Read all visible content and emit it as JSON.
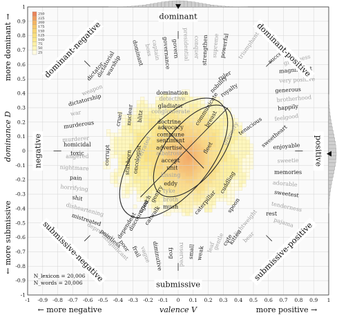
{
  "chart_data": {
    "type": "heatmap",
    "title": "",
    "xlabel": "valence V",
    "xlabel_left": "← more negative",
    "xlabel_right": "more positive →",
    "ylabel": "dominance D",
    "ylabel_top": "more dominant →",
    "ylabel_bottom": "← more submissive",
    "xlim": [
      -1,
      1
    ],
    "ylim": [
      -1,
      1
    ],
    "x_ticks": [
      "-1",
      "-0.9",
      "-0.8",
      "-0.7",
      "-0.6",
      "-0.5",
      "-0.4",
      "-0.3",
      "-0.2",
      "-0.1",
      "0",
      "0.1",
      "0.2",
      "0.3",
      "0.4",
      "0.5",
      "0.6",
      "0.7",
      "0.8",
      "0.9",
      "1"
    ],
    "y_ticks": [
      "-1",
      "-0.9",
      "-0.8",
      "-0.7",
      "-0.6",
      "-0.5",
      "-0.4",
      "-0.3",
      "-0.2",
      "-0.1",
      "0",
      "0.1",
      "0.2",
      "0.3",
      "0.4",
      "0.5",
      "0.6",
      "0.7",
      "0.8",
      "0.9",
      "1"
    ],
    "grid": true,
    "colorbar": {
      "placement": "top-left",
      "ticks": [
        "250",
        "225",
        "200",
        "175",
        "150",
        "125",
        "100",
        "75",
        "50",
        "25"
      ],
      "colors": [
        "#e8845a",
        "#ee9e5f",
        "#f3b463",
        "#f6c76a",
        "#f8d574",
        "#fae07f",
        "#fbe88e",
        "#fcf0a3",
        "#fdf6bd",
        "#fffbe0"
      ]
    },
    "direction_labels": [
      {
        "text": "dominant",
        "x": 0,
        "y": 0.93
      },
      {
        "text": "submissive",
        "x": 0,
        "y": -0.93
      },
      {
        "text": "negative",
        "x": -0.93,
        "y": 0
      },
      {
        "text": "positive",
        "x": 0.93,
        "y": 0
      },
      {
        "text": "dominant-negative",
        "x": -0.7,
        "y": 0.7
      },
      {
        "text": "dominant-positive",
        "x": 0.7,
        "y": 0.7
      },
      {
        "text": "submissive-negative",
        "x": -0.7,
        "y": -0.7
      },
      {
        "text": "submissive-positive",
        "x": 0.7,
        "y": -0.7
      }
    ],
    "words": [
      {
        "text": "warship",
        "x": -0.43,
        "y": 0.59,
        "rot": -60,
        "gray": false
      },
      {
        "text": "weapon",
        "x": -0.57,
        "y": 0.42,
        "rot": -22,
        "gray": true
      },
      {
        "text": "dictatorship",
        "x": -0.62,
        "y": 0.35,
        "rot": -15,
        "gray": false
      },
      {
        "text": "war",
        "x": -0.68,
        "y": 0.26,
        "rot": -10,
        "gray": true
      },
      {
        "text": "murderous",
        "x": -0.66,
        "y": 0.18,
        "rot": -8,
        "gray": false
      },
      {
        "text": "murderer",
        "x": -0.68,
        "y": 0.08,
        "rot": -4,
        "gray": true
      },
      {
        "text": "homicidal",
        "x": -0.67,
        "y": 0.04,
        "rot": 0,
        "gray": false
      },
      {
        "text": "angered",
        "x": -0.67,
        "y": -0.04,
        "rot": 0,
        "gray": true
      },
      {
        "text": "toxic",
        "x": -0.67,
        "y": -0.02,
        "rot": 0,
        "gray": false
      },
      {
        "text": "nightmare",
        "x": -0.69,
        "y": -0.12,
        "rot": 3,
        "gray": true
      },
      {
        "text": "pain",
        "x": -0.68,
        "y": -0.19,
        "rot": 4,
        "gray": false
      },
      {
        "text": "horrifying",
        "x": -0.69,
        "y": -0.26,
        "rot": 6,
        "gray": true
      },
      {
        "text": "shit",
        "x": -0.67,
        "y": -0.33,
        "rot": 10,
        "gray": false
      },
      {
        "text": "disheartening",
        "x": -0.62,
        "y": -0.41,
        "rot": 15,
        "gray": true
      },
      {
        "text": "mistreated",
        "x": -0.61,
        "y": -0.48,
        "rot": 18,
        "gray": false
      },
      {
        "text": "depressed",
        "x": -0.52,
        "y": -0.56,
        "rot": 30,
        "gray": true
      },
      {
        "text": "pointless",
        "x": -0.45,
        "y": -0.61,
        "rot": 40,
        "gray": false
      },
      {
        "text": "insignificant",
        "x": -0.42,
        "y": -0.67,
        "rot": 45,
        "gray": true
      },
      {
        "text": "poor",
        "x": -0.36,
        "y": -0.66,
        "rot": 55,
        "gray": false
      },
      {
        "text": "frail",
        "x": -0.28,
        "y": -0.7,
        "rot": 65,
        "gray": false
      },
      {
        "text": "vague",
        "x": -0.22,
        "y": -0.72,
        "rot": 70,
        "gray": true
      },
      {
        "text": "diminutive",
        "x": -0.14,
        "y": -0.73,
        "rot": 80,
        "gray": false
      },
      {
        "text": "frog",
        "x": -0.05,
        "y": -0.71,
        "rot": 85,
        "gray": false
      },
      {
        "text": "reserved",
        "x": 0.02,
        "y": -0.72,
        "rot": 90,
        "gray": true
      },
      {
        "text": "small",
        "x": 0.09,
        "y": -0.7,
        "rot": -85,
        "gray": false
      },
      {
        "text": "weak",
        "x": 0.15,
        "y": -0.71,
        "rot": -80,
        "gray": false
      },
      {
        "text": "leaf",
        "x": 0.22,
        "y": -0.67,
        "rot": -72,
        "gray": true
      },
      {
        "text": "gentle",
        "x": 0.27,
        "y": -0.63,
        "rot": -68,
        "gray": true
      },
      {
        "text": "cute",
        "x": 0.33,
        "y": -0.62,
        "rot": -60,
        "gray": false
      },
      {
        "text": "kitten",
        "x": 0.38,
        "y": -0.6,
        "rot": -55,
        "gray": false
      },
      {
        "text": "bear",
        "x": 0.47,
        "y": -0.6,
        "rot": -45,
        "gray": true
      },
      {
        "text": "rest",
        "x": 0.62,
        "y": -0.44,
        "rot": 0,
        "gray": false
      },
      {
        "text": "pajama",
        "x": 0.7,
        "y": -0.5,
        "rot": 18,
        "gray": true
      },
      {
        "text": "tenderness",
        "x": 0.72,
        "y": -0.39,
        "rot": 12,
        "gray": true
      },
      {
        "text": "sweetest",
        "x": 0.72,
        "y": -0.3,
        "rot": 8,
        "gray": false
      },
      {
        "text": "adorable",
        "x": 0.71,
        "y": -0.23,
        "rot": 5,
        "gray": true
      },
      {
        "text": "memories",
        "x": 0.73,
        "y": -0.15,
        "rot": 0,
        "gray": false
      },
      {
        "text": "sweetie",
        "x": 0.73,
        "y": -0.07,
        "rot": -2,
        "gray": true
      },
      {
        "text": "enjoyable",
        "x": 0.72,
        "y": 0.03,
        "rot": -5,
        "gray": false
      },
      {
        "text": "sweetheart",
        "x": 0.64,
        "y": 0.1,
        "rot": -40,
        "gray": false
      },
      {
        "text": "feelgood",
        "x": 0.72,
        "y": 0.23,
        "rot": -8,
        "gray": true
      },
      {
        "text": "happily",
        "x": 0.73,
        "y": 0.3,
        "rot": -6,
        "gray": false
      },
      {
        "text": "brotherhood",
        "x": 0.77,
        "y": 0.36,
        "rot": -5,
        "gray": true
      },
      {
        "text": "generous",
        "x": 0.73,
        "y": 0.42,
        "rot": -3,
        "gray": false
      },
      {
        "text": "very positive",
        "x": 0.79,
        "y": 0.49,
        "rot": -3,
        "gray": true
      },
      {
        "text": "magnificent",
        "x": 0.78,
        "y": 0.56,
        "rot": -5,
        "gray": false
      },
      {
        "text": "greatness",
        "x": 0.79,
        "y": 0.63,
        "rot": -15,
        "gray": true
      },
      {
        "text": "success",
        "x": 0.66,
        "y": 0.66,
        "rot": -40,
        "gray": false
      },
      {
        "text": "triumphant",
        "x": 0.47,
        "y": 0.73,
        "rot": -55,
        "gray": true
      },
      {
        "text": "powerful",
        "x": 0.31,
        "y": 0.73,
        "rot": -80,
        "gray": false
      },
      {
        "text": "supreme",
        "x": 0.25,
        "y": 0.73,
        "rot": -85,
        "gray": true
      },
      {
        "text": "strengthen",
        "x": 0.18,
        "y": 0.7,
        "rot": -88,
        "gray": false
      },
      {
        "text": "conquer",
        "x": 0.12,
        "y": 0.72,
        "rot": 90,
        "gray": true
      },
      {
        "text": "presidential",
        "x": 0.05,
        "y": 0.74,
        "rot": 88,
        "gray": true
      },
      {
        "text": "govern",
        "x": -0.02,
        "y": 0.71,
        "rot": 85,
        "gray": false
      },
      {
        "text": "governance",
        "x": -0.08,
        "y": 0.68,
        "rot": 85,
        "gray": false
      },
      {
        "text": "captain",
        "x": -0.15,
        "y": 0.7,
        "rot": 80,
        "gray": true
      },
      {
        "text": "boss",
        "x": -0.2,
        "y": 0.7,
        "rot": 78,
        "gray": true
      },
      {
        "text": "dominant",
        "x": -0.27,
        "y": 0.68,
        "rot": 75,
        "gray": false
      },
      {
        "text": "dictator",
        "x": -0.55,
        "y": 0.55,
        "rot": -50,
        "gray": false
      },
      {
        "text": "dictatorial",
        "x": -0.48,
        "y": 0.6,
        "rot": -60,
        "gray": false
      },
      {
        "text": "domination",
        "x": -0.04,
        "y": 0.4,
        "rot": 0,
        "gray": false
      },
      {
        "text": "detective",
        "x": -0.04,
        "y": 0.36,
        "rot": 0,
        "gray": true
      },
      {
        "text": "gladiator",
        "x": -0.05,
        "y": 0.31,
        "rot": 0,
        "gray": false
      },
      {
        "text": "conglomerate",
        "x": -0.05,
        "y": 0.27,
        "rot": 0,
        "gray": true
      },
      {
        "text": "doctrine",
        "x": -0.06,
        "y": 0.2,
        "rot": 0,
        "gray": false
      },
      {
        "text": "advocacy",
        "x": -0.05,
        "y": 0.16,
        "rot": 0,
        "gray": false
      },
      {
        "text": "commune",
        "x": -0.05,
        "y": 0.11,
        "rot": 0,
        "gray": false
      },
      {
        "text": "sentiment",
        "x": -0.05,
        "y": 0.07,
        "rot": 0,
        "gray": false
      },
      {
        "text": "advertise",
        "x": -0.06,
        "y": 0.02,
        "rot": 0,
        "gray": false
      },
      {
        "text": "albatross",
        "x": -0.06,
        "y": -0.02,
        "rot": 0,
        "gray": true
      },
      {
        "text": "accept",
        "x": -0.05,
        "y": -0.07,
        "rot": 0,
        "gray": false
      },
      {
        "text": "unit",
        "x": -0.04,
        "y": -0.12,
        "rot": 0,
        "gray": false
      },
      {
        "text": "kissing",
        "x": -0.05,
        "y": -0.17,
        "rot": 0,
        "gray": true
      },
      {
        "text": "eddy",
        "x": -0.05,
        "y": -0.23,
        "rot": 0,
        "gray": false
      },
      {
        "text": "tyke",
        "x": -0.06,
        "y": -0.28,
        "rot": 0,
        "gray": true
      },
      {
        "text": "broth",
        "x": -0.05,
        "y": -0.34,
        "rot": 0,
        "gray": true
      },
      {
        "text": "mush",
        "x": -0.05,
        "y": -0.39,
        "rot": 0,
        "gray": false
      },
      {
        "text": "corrupt",
        "x": -0.47,
        "y": -0.03,
        "rot": -88,
        "gray": false
      },
      {
        "text": "cruel",
        "x": -0.39,
        "y": 0.22,
        "rot": -80,
        "gray": false
      },
      {
        "text": "nuclear",
        "x": -0.32,
        "y": 0.25,
        "rot": -85,
        "gray": false
      },
      {
        "text": "blitz",
        "x": -0.25,
        "y": 0.24,
        "rot": -85,
        "gray": false
      },
      {
        "text": "stubborn",
        "x": -0.33,
        "y": -0.08,
        "rot": -85,
        "gray": false
      },
      {
        "text": "oncologist",
        "x": -0.27,
        "y": -0.06,
        "rot": -82,
        "gray": false
      },
      {
        "text": "crunch",
        "x": -0.22,
        "y": -0.37,
        "rot": -60,
        "gray": false
      },
      {
        "text": "discouraged",
        "x": -0.26,
        "y": -0.45,
        "rot": -60,
        "gray": false
      },
      {
        "text": "catwalk",
        "x": -0.17,
        "y": -0.45,
        "rot": -55,
        "gray": false
      },
      {
        "text": "gentry",
        "x": -0.14,
        "y": -0.3,
        "rot": -60,
        "gray": false
      },
      {
        "text": "dependent",
        "x": -0.34,
        "y": -0.52,
        "rot": -58,
        "gray": false
      },
      {
        "text": "overrated",
        "x": -0.23,
        "y": 0.01,
        "rot": -65,
        "gray": true
      },
      {
        "text": "communicate",
        "x": 0.19,
        "y": 0.29,
        "rot": -58,
        "gray": false
      },
      {
        "text": "fleet",
        "x": 0.2,
        "y": 0.02,
        "rot": -60,
        "gray": false
      },
      {
        "text": "breast",
        "x": 0.22,
        "y": 0.22,
        "rot": -60,
        "gray": false
      },
      {
        "text": "nobility",
        "x": 0.27,
        "y": 0.46,
        "rot": -45,
        "gray": false
      },
      {
        "text": "royalty",
        "x": 0.34,
        "y": 0.42,
        "rot": -35,
        "gray": false
      },
      {
        "text": "greenery",
        "x": 0.35,
        "y": 0.12,
        "rot": -60,
        "gray": true
      },
      {
        "text": "tenacious",
        "x": 0.48,
        "y": 0.17,
        "rot": -35,
        "gray": false
      },
      {
        "text": "ruler",
        "x": 0.31,
        "y": 0.52,
        "rot": -30,
        "gray": false
      },
      {
        "text": "cuddling",
        "x": 0.33,
        "y": -0.22,
        "rot": -60,
        "gray": false
      },
      {
        "text": "caterpillar",
        "x": 0.18,
        "y": -0.36,
        "rot": -50,
        "gray": false
      },
      {
        "text": "spoon",
        "x": 0.37,
        "y": -0.38,
        "rot": -55,
        "gray": false
      },
      {
        "text": "lightweight",
        "x": 0.45,
        "y": -0.5,
        "rot": -50,
        "gray": true
      }
    ],
    "ellipses": [
      {
        "cx": 0.1,
        "cy": 0.0,
        "rx": 0.36,
        "ry": 0.19,
        "angle": 52
      },
      {
        "cx": -0.03,
        "cy": -0.05,
        "rx": 0.48,
        "ry": 0.25,
        "angle": 50
      }
    ],
    "marginal_x": {
      "placement": "top",
      "mean": 0.0
    },
    "marginal_y": {
      "placement": "right",
      "mean": -0.02
    },
    "annotations": [
      "N_lexicon = 20,006",
      "N_words = 20,006"
    ]
  }
}
